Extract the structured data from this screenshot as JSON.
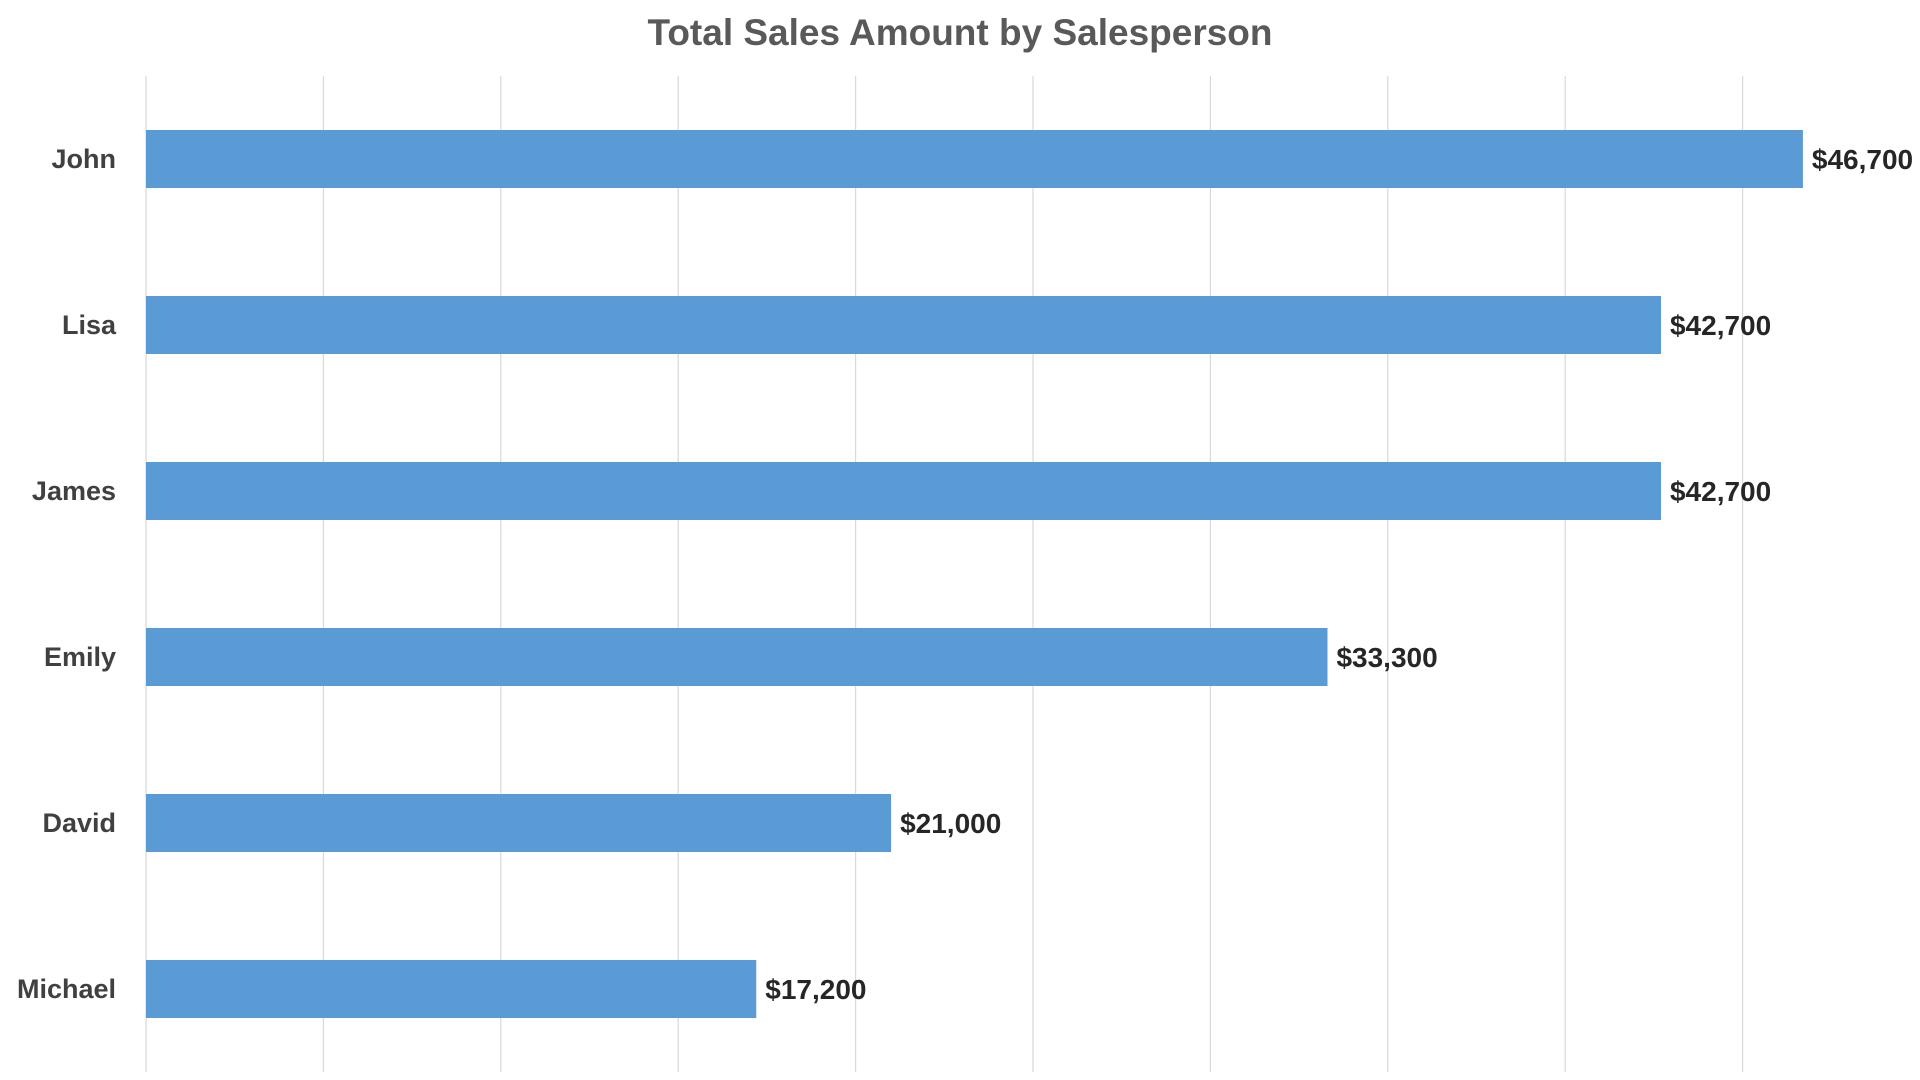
{
  "chart_data": {
    "type": "bar",
    "orientation": "horizontal",
    "title": "Total Sales Amount by Salesperson",
    "xlabel": "",
    "ylabel": "",
    "categories": [
      "John",
      "Lisa",
      "James",
      "Emily",
      "David",
      "Michael"
    ],
    "values": [
      46700,
      42700,
      42700,
      33300,
      21000,
      17200
    ],
    "value_labels": [
      "$46,700",
      "$42,700",
      "$42,700",
      "$33,300",
      "$21,000",
      "$17,200"
    ],
    "xlim": [
      0,
      50000
    ],
    "x_major_step": 5000,
    "grid": "vertical",
    "legend": "none",
    "bar_color": "#5B9BD5"
  }
}
